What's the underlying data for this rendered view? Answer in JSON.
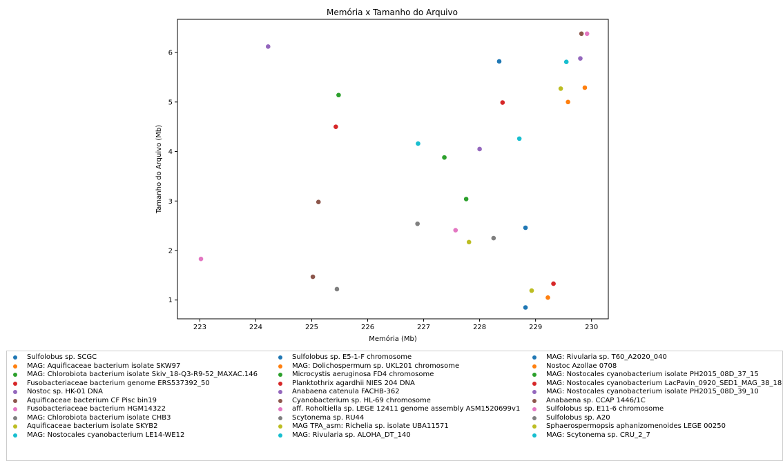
{
  "chart_data": {
    "type": "scatter",
    "title": "Memória x Tamanho do Arquivo",
    "xlabel": "Memória (Mb)",
    "ylabel": "Tamanho do Arquivo (Mb)",
    "xlim": [
      222.6,
      230.3
    ],
    "ylim": [
      0.62,
      6.67
    ],
    "xticks": [
      223,
      224,
      225,
      226,
      227,
      228,
      229,
      230
    ],
    "yticks": [
      1,
      2,
      3,
      4,
      5,
      6
    ],
    "grid": false,
    "legend_placement": "below plot",
    "series": [
      {
        "name": "Sulfolobus sp. SCGC",
        "color": "#1f77b4",
        "x": 228.35,
        "y": 5.82
      },
      {
        "name": "MAG: Aquificaceae bacterium isolate SKW97",
        "color": "#ff7f0e",
        "x": 229.58,
        "y": 5.0
      },
      {
        "name": "MAG: Chlorobiota bacterium isolate Skiv_18-Q3-R9-52_MAXAC.146",
        "color": "#2ca02c",
        "x": 225.48,
        "y": 5.14
      },
      {
        "name": "Fusobacteriaceae bacterium genome ERS537392_50",
        "color": "#d62728",
        "x": 225.43,
        "y": 4.5
      },
      {
        "name": "Nostoc sp. HK-01 DNA",
        "color": "#9467bd",
        "x": 224.22,
        "y": 6.12
      },
      {
        "name": "Aquificaceae bacterium CF Pisc bin19",
        "color": "#8c564b",
        "x": 225.12,
        "y": 2.98
      },
      {
        "name": "Fusobacteriaceae bacterium HGM14322",
        "color": "#e377c2",
        "x": 223.02,
        "y": 1.83
      },
      {
        "name": "MAG: Chlorobiota bacterium isolate CHB3",
        "color": "#7f7f7f",
        "x": 225.45,
        "y": 1.22
      },
      {
        "name": "Aquificaceae bacterium isolate SKYB2",
        "color": "#bcbd22",
        "x": 229.45,
        "y": 5.27
      },
      {
        "name": "MAG: Nostocales cyanobacterium LE14-WE12",
        "color": "#17becf",
        "x": 229.55,
        "y": 5.81
      },
      {
        "name": "Sulfolobus sp. E5-1-F chromosome",
        "color": "#1f77b4",
        "x": 228.82,
        "y": 2.46
      },
      {
        "name": "MAG: Dolichospermum sp. UKL201 chromosome",
        "color": "#ff7f0e",
        "x": 229.88,
        "y": 5.29
      },
      {
        "name": "Microcystis aeruginosa FD4 chromosome",
        "color": "#2ca02c",
        "x": 227.37,
        "y": 3.88
      },
      {
        "name": "Planktothrix agardhii NIES 204 DNA",
        "color": "#d62728",
        "x": 228.41,
        "y": 4.99
      },
      {
        "name": "Anabaena catenula FACHB-362",
        "color": "#9467bd",
        "x": 228.0,
        "y": 4.05
      },
      {
        "name": "Cyanobacterium sp. HL-69 chromosome",
        "color": "#8c564b",
        "x": 225.02,
        "y": 1.47
      },
      {
        "name": "aff. Roholtiella sp. LEGE 12411 genome assembly ASM1520699v1",
        "color": "#e377c2",
        "x": 227.57,
        "y": 2.41
      },
      {
        "name": "Scytonema sp. RU44",
        "color": "#7f7f7f",
        "x": 226.89,
        "y": 2.54
      },
      {
        "name": "MAG TPA_asm: Richelia sp. isolate UBA11571",
        "color": "#bcbd22",
        "x": 227.81,
        "y": 2.17
      },
      {
        "name": "MAG: Rivularia sp. ALOHA_DT_140",
        "color": "#17becf",
        "x": 226.9,
        "y": 4.16
      },
      {
        "name": "MAG: Rivularia sp. T60_A2020_040",
        "color": "#1f77b4",
        "x": 228.82,
        "y": 0.85
      },
      {
        "name": "Nostoc Azollae 0708",
        "color": "#ff7f0e",
        "x": 229.22,
        "y": 1.05
      },
      {
        "name": "MAG: Nostocales cyanobacterium isolate PH2015_08D_37_15",
        "color": "#2ca02c",
        "x": 227.76,
        "y": 3.04
      },
      {
        "name": "MAG: Nostocales cyanobacterium LacPavin_0920_SED1_MAG_38_18",
        "color": "#d62728",
        "x": 229.32,
        "y": 1.33
      },
      {
        "name": "MAG: Nostocales cyanobacterium isolate PH2015_08D_39_10",
        "color": "#9467bd",
        "x": 229.8,
        "y": 5.88
      },
      {
        "name": "Anabaena sp. CCAP 1446/1C",
        "color": "#8c564b",
        "x": 229.82,
        "y": 6.38
      },
      {
        "name": "Sulfolobus sp. E11-6 chromosome",
        "color": "#e377c2",
        "x": 229.92,
        "y": 6.38
      },
      {
        "name": "Sulfolobus sp. A20",
        "color": "#7f7f7f",
        "x": 228.25,
        "y": 2.25
      },
      {
        "name": "Sphaerospermopsis aphanizomenoides LEGE 00250",
        "color": "#bcbd22",
        "x": 228.93,
        "y": 1.19
      },
      {
        "name": "MAG: Scytonema sp. CRU_2_7",
        "color": "#17becf",
        "x": 228.71,
        "y": 4.26
      }
    ]
  }
}
